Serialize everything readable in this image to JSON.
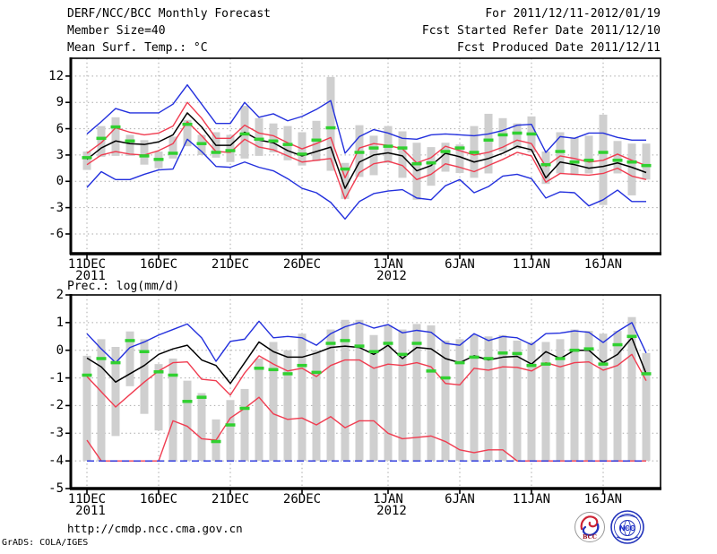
{
  "header": {
    "title": "DERF/NCC/BCC Monthly Forecast",
    "member_size": "Member Size=40",
    "var_label": "Mean Surf. Temp.: °C",
    "for_range": "For 2011/12/11-2012/01/19",
    "fcst_started": "Fcst Started Refer Date 2011/12/10",
    "fcst_produced": "Fcst Produced Date 2011/12/11"
  },
  "footer": {
    "url": "http://cmdp.ncc.cma.gov.cn",
    "credit": "GrADS: COLA/IGES"
  },
  "logos": {
    "bcc": "BCC",
    "ncc": "NCC"
  },
  "colors": {
    "blue": "#2330dd",
    "red": "#f03c50",
    "green": "#30d030",
    "bar_gray": "#cfcfcf",
    "grid_gray": "#aaaaaa"
  },
  "chart_data": [
    {
      "id": "temp",
      "type": "line",
      "title": "Mean Surf. Temp.: °C",
      "ylabel": "°C",
      "ylim": [
        -8.25,
        14.03
      ],
      "yticks": [
        12,
        9,
        6,
        3,
        0,
        -3,
        -6
      ],
      "n_days": 40,
      "xticks": [
        {
          "day": 1,
          "label": "11DEC",
          "sublabel": "2011"
        },
        {
          "day": 6,
          "label": "16DEC"
        },
        {
          "day": 11,
          "label": "21DEC"
        },
        {
          "day": 16,
          "label": "26DEC"
        },
        {
          "day": 22,
          "label": "1JAN",
          "sublabel": "2012"
        },
        {
          "day": 27,
          "label": "6JAN"
        },
        {
          "day": 32,
          "label": "11JAN"
        },
        {
          "day": 37,
          "label": "16JAN"
        }
      ],
      "series": [
        {
          "name": "blue_upper_bound",
          "color": "#2330dd",
          "values": [
            5.4,
            6.8,
            8.3,
            7.8,
            7.8,
            7.8,
            8.8,
            11.0,
            8.8,
            6.6,
            6.6,
            9.0,
            7.3,
            7.7,
            6.9,
            7.4,
            8.2,
            9.2,
            3.2,
            5.1,
            5.9,
            5.5,
            4.9,
            4.8,
            5.3,
            5.4,
            5.3,
            5.2,
            5.4,
            5.8,
            6.4,
            6.5,
            3.3,
            5.1,
            4.9,
            5.5,
            5.5,
            5.0,
            4.7,
            4.7
          ]
        },
        {
          "name": "red_upper_quartile",
          "color": "#f03c50",
          "values": [
            3.2,
            4.4,
            6.1,
            5.6,
            5.3,
            5.5,
            6.3,
            9.0,
            7.2,
            4.9,
            4.9,
            6.4,
            5.5,
            5.2,
            4.4,
            3.7,
            4.3,
            5.0,
            0.4,
            3.8,
            4.3,
            4.1,
            3.7,
            2.1,
            2.7,
            4.0,
            3.5,
            3.0,
            3.3,
            3.9,
            4.7,
            4.3,
            1.7,
            2.9,
            2.6,
            2.2,
            2.4,
            3.1,
            2.4,
            1.8
          ]
        },
        {
          "name": "red_lower_quartile",
          "color": "#f03c50",
          "values": [
            1.9,
            3.0,
            3.4,
            3.1,
            3.0,
            3.5,
            4.3,
            6.8,
            5.2,
            3.4,
            3.3,
            4.8,
            3.9,
            3.6,
            2.9,
            2.2,
            2.4,
            2.6,
            -2.0,
            1.0,
            2.0,
            2.3,
            1.8,
            0.2,
            0.8,
            2.0,
            1.6,
            1.1,
            1.8,
            2.5,
            3.3,
            2.9,
            -0.1,
            0.9,
            0.8,
            0.7,
            0.9,
            1.5,
            0.6,
            0.2
          ]
        },
        {
          "name": "blue_lower_bound",
          "color": "#2330dd",
          "values": [
            -0.7,
            1.1,
            0.2,
            0.2,
            0.8,
            1.3,
            1.4,
            4.8,
            3.4,
            1.7,
            1.6,
            2.2,
            1.6,
            1.2,
            0.3,
            -0.8,
            -1.3,
            -2.4,
            -4.3,
            -2.3,
            -1.4,
            -1.1,
            -0.95,
            -1.9,
            -2.1,
            -0.5,
            0.2,
            -1.3,
            -0.6,
            0.6,
            0.8,
            0.3,
            -1.9,
            -1.2,
            -1.3,
            -2.8,
            -2.1,
            -1.0,
            -2.3,
            -2.3
          ]
        },
        {
          "name": "ensemble_mean_black",
          "color": "#000000",
          "values": [
            2.5,
            3.8,
            4.6,
            4.3,
            4.2,
            4.5,
            5.3,
            7.8,
            6.2,
            4.1,
            4.1,
            5.6,
            4.7,
            4.4,
            3.5,
            2.9,
            3.4,
            3.9,
            -0.8,
            2.2,
            3.0,
            3.25,
            2.9,
            1.2,
            1.8,
            3.2,
            2.8,
            2.2,
            2.6,
            3.2,
            4.0,
            3.6,
            0.4,
            2.2,
            1.9,
            1.5,
            1.7,
            2.1,
            1.6,
            1.0
          ]
        }
      ],
      "markers": {
        "name": "observation_green",
        "color": "#30d030",
        "values": [
          2.7,
          4.9,
          6.2,
          4.6,
          2.9,
          2.5,
          3.2,
          6.5,
          4.3,
          3.3,
          3.5,
          5.4,
          4.8,
          4.6,
          4.2,
          3.1,
          4.7,
          6.1,
          1.4,
          3.3,
          3.8,
          4.0,
          3.8,
          2.0,
          2.1,
          3.4,
          3.8,
          3.3,
          4.7,
          5.3,
          5.5,
          5.4,
          1.9,
          3.4,
          2.2,
          2.4,
          3.3,
          2.4,
          2.2,
          1.8
        ]
      },
      "bars": {
        "name": "member_spread_gray",
        "color": "#cfcfcf",
        "top": [
          3.4,
          6.3,
          7.3,
          5.3,
          4.7,
          3.4,
          5.1,
          7.0,
          5.3,
          5.6,
          5.3,
          8.6,
          7.2,
          6.6,
          6.3,
          5.6,
          6.9,
          11.9,
          2.1,
          6.4,
          5.2,
          6.3,
          5.7,
          4.4,
          3.9,
          4.4,
          4.2,
          6.3,
          7.7,
          7.2,
          6.6,
          7.4,
          3.4,
          5.6,
          5.0,
          5.2,
          7.6,
          4.6,
          4.3,
          4.3
        ],
        "bottom": [
          1.3,
          2.8,
          2.9,
          2.9,
          1.9,
          1.5,
          2.6,
          4.0,
          3.0,
          2.7,
          2.2,
          2.6,
          2.9,
          3.3,
          2.4,
          1.8,
          2.3,
          1.2,
          -2.0,
          0.5,
          0.7,
          2.1,
          0.4,
          -2.1,
          -0.5,
          1.1,
          0.95,
          0.4,
          0.9,
          3.4,
          3.7,
          3.3,
          -0.3,
          0.9,
          0.7,
          0.9,
          -2.7,
          0.9,
          -1.6,
          0.2
        ]
      }
    },
    {
      "id": "prec",
      "type": "line",
      "title": "Prec.: log(mm/d)",
      "ylabel": "log(mm/d)",
      "ylim": [
        -5,
        2
      ],
      "yticks": [
        2,
        1,
        0,
        -1,
        -2,
        -3,
        -4,
        -5
      ],
      "n_days": 40,
      "xticks": [
        {
          "day": 1,
          "label": "11DEC",
          "sublabel": "2011"
        },
        {
          "day": 6,
          "label": "16DEC"
        },
        {
          "day": 11,
          "label": "21DEC"
        },
        {
          "day": 16,
          "label": "26DEC"
        },
        {
          "day": 22,
          "label": "1JAN",
          "sublabel": "2012"
        },
        {
          "day": 27,
          "label": "6JAN"
        },
        {
          "day": 32,
          "label": "11JAN"
        },
        {
          "day": 37,
          "label": "16JAN"
        }
      ],
      "series": [
        {
          "name": "blue_upper_bound",
          "color": "#2330dd",
          "values": [
            0.6,
            0.05,
            -0.45,
            0.1,
            0.3,
            0.55,
            0.75,
            0.95,
            0.45,
            -0.4,
            0.32,
            0.4,
            1.05,
            0.45,
            0.5,
            0.45,
            0.18,
            0.6,
            0.85,
            1.0,
            0.8,
            0.93,
            0.63,
            0.72,
            0.65,
            0.25,
            0.18,
            0.6,
            0.35,
            0.5,
            0.45,
            0.2,
            0.6,
            0.62,
            0.7,
            0.65,
            0.28,
            0.68,
            1.0,
            -0.1
          ]
        },
        {
          "name": "red_upper_quartile",
          "color": "#f03c50",
          "values": [
            -0.95,
            -1.5,
            -2.05,
            -1.6,
            -1.15,
            -0.75,
            -0.45,
            -0.42,
            -1.05,
            -1.1,
            -1.62,
            -0.82,
            -0.2,
            -0.5,
            -0.75,
            -0.65,
            -0.95,
            -0.55,
            -0.35,
            -0.35,
            -0.65,
            -0.5,
            -0.55,
            -0.45,
            -0.6,
            -1.2,
            -1.25,
            -0.65,
            -0.72,
            -0.6,
            -0.62,
            -0.75,
            -0.45,
            -0.6,
            -0.45,
            -0.42,
            -0.72,
            -0.55,
            -0.15,
            -1.1
          ]
        },
        {
          "name": "red_lower_quartile",
          "color": "#f03c50",
          "values": [
            -3.25,
            -4,
            -4,
            -4,
            -4,
            -4,
            -2.55,
            -2.75,
            -3.2,
            -3.25,
            -2.45,
            -2.1,
            -1.7,
            -2.3,
            -2.5,
            -2.45,
            -2.7,
            -2.4,
            -2.8,
            -2.55,
            -2.55,
            -3.0,
            -3.2,
            -3.15,
            -3.1,
            -3.3,
            -3.6,
            -3.7,
            -3.6,
            -3.6,
            -4,
            -4,
            -4,
            -4,
            -4,
            -4,
            -4,
            -4,
            -4,
            -4
          ]
        },
        {
          "name": "blue_lower_bound",
          "color": "#2330dd",
          "dash": true,
          "values": [
            -4,
            -4,
            -4,
            -4,
            -4,
            -4,
            -4,
            -4,
            -4,
            -4,
            -4,
            -4,
            -4,
            -4,
            -4,
            -4,
            -4,
            -4,
            -4,
            -4,
            -4,
            -4,
            -4,
            -4,
            -4,
            -4,
            -4,
            -4,
            -4,
            -4,
            -4,
            -4,
            -4,
            -4,
            -4,
            -4,
            -4,
            -4,
            -4,
            -4
          ]
        },
        {
          "name": "ensemble_mean_black",
          "color": "#000000",
          "values": [
            -0.28,
            -0.6,
            -1.15,
            -0.85,
            -0.55,
            -0.15,
            0.05,
            0.18,
            -0.35,
            -0.55,
            -1.2,
            -0.45,
            0.3,
            -0.05,
            -0.25,
            -0.25,
            -0.1,
            0.1,
            0.15,
            0.1,
            -0.15,
            0.18,
            -0.3,
            0.1,
            0.05,
            -0.3,
            -0.45,
            -0.2,
            -0.35,
            -0.25,
            -0.22,
            -0.5,
            -0.05,
            -0.3,
            0.0,
            0.0,
            -0.45,
            -0.15,
            0.45,
            -0.85
          ]
        }
      ],
      "markers": {
        "name": "observation_green",
        "color": "#30d030",
        "values": [
          -0.9,
          -0.3,
          -0.45,
          0.35,
          -0.05,
          -0.78,
          -0.9,
          -1.85,
          -1.7,
          -3.3,
          -2.7,
          -2.1,
          -0.65,
          -0.7,
          -0.85,
          -0.55,
          -0.8,
          0.25,
          0.35,
          0.15,
          -0.05,
          0.25,
          -0.15,
          0.25,
          -0.75,
          -1.0,
          -0.45,
          -0.25,
          -0.3,
          -0.1,
          -0.12,
          -0.55,
          -0.5,
          -0.3,
          0.0,
          0.05,
          -0.5,
          0.2,
          0.5,
          -0.85
        ]
      },
      "bars": {
        "name": "member_spread_gray",
        "color": "#cfcfcf",
        "top": [
          -0.2,
          0.4,
          0.12,
          0.68,
          0.4,
          -0.5,
          -0.3,
          -1.1,
          -1.55,
          -2.5,
          -1.8,
          -1.4,
          -0.3,
          0.3,
          0.0,
          0.6,
          0.0,
          0.75,
          1.1,
          1.1,
          0.55,
          0.9,
          0.75,
          0.95,
          0.9,
          0.35,
          0.4,
          0.55,
          0.5,
          0.55,
          0.35,
          0.28,
          0.3,
          0.4,
          0.75,
          0.7,
          0.6,
          0.7,
          1.2,
          -0.1
        ],
        "bottom": [
          -4,
          -4,
          -3.1,
          -1.3,
          -2.3,
          -2.9,
          -4,
          -4,
          -4,
          -4,
          -4,
          -4,
          -4,
          -4,
          -4,
          -4,
          -4,
          -4,
          -4,
          -4,
          -4,
          -4,
          -4,
          -4,
          -4,
          -4,
          -4,
          -4,
          -4,
          -4,
          -4,
          -4,
          -4,
          -4,
          -4,
          -4,
          -4,
          -4,
          -4,
          -4
        ]
      }
    }
  ]
}
